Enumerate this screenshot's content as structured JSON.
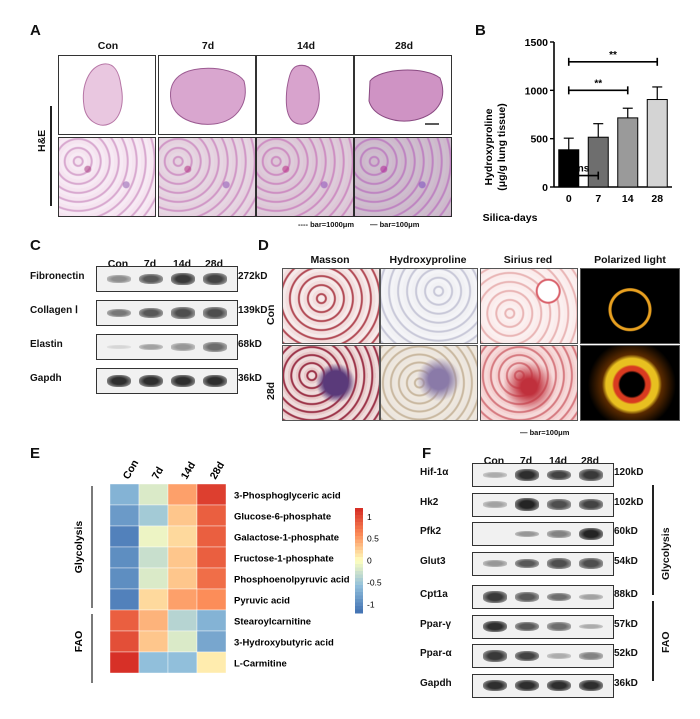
{
  "panel_a": {
    "label": "A",
    "columns": [
      "Con",
      "7d",
      "14d",
      "28d"
    ],
    "row_label": "H&E",
    "scale_text_1": "---- bar=1000μm",
    "scale_text_2": "— bar=100μm"
  },
  "panel_b": {
    "label": "B"
  },
  "chart_data": {
    "type": "bar",
    "categories": [
      "0",
      "7",
      "14",
      "28"
    ],
    "values": [
      385,
      515,
      715,
      905
    ],
    "errors": [
      120,
      140,
      100,
      130
    ],
    "colors": [
      "#000000",
      "#6e6e6e",
      "#9a9a9a",
      "#d4d4d4"
    ],
    "xlabel": "Silica-days",
    "ylabel": "Hydroxyproline\n(μg/g lung tissue)",
    "ylim": [
      0,
      1500
    ],
    "yticks": [
      0,
      500,
      1000,
      1500
    ],
    "annotations": [
      {
        "from": "0",
        "to": "7",
        "text": "ns"
      },
      {
        "from": "0",
        "to": "14",
        "text": "**"
      },
      {
        "from": "0",
        "to": "28",
        "text": "**"
      }
    ]
  },
  "panel_c": {
    "label": "C",
    "columns": [
      "Con",
      "7d",
      "14d",
      "28d"
    ],
    "rows": [
      {
        "name": "Fibronectin",
        "kd": "272kD",
        "levels": [
          0.45,
          0.7,
          0.85,
          0.8
        ]
      },
      {
        "name": "Collagen Ⅰ",
        "kd": "139kD",
        "levels": [
          0.55,
          0.7,
          0.75,
          0.75
        ]
      },
      {
        "name": "Elastin",
        "kd": "68kD",
        "levels": [
          0.1,
          0.35,
          0.4,
          0.6
        ]
      },
      {
        "name": "Gapdh",
        "kd": "36kD",
        "levels": [
          0.9,
          0.9,
          0.9,
          0.9
        ]
      }
    ]
  },
  "panel_d": {
    "label": "D",
    "columns": [
      "Masson",
      "Hydroxyproline",
      "Sirius red",
      "Polarized light"
    ],
    "rows": [
      "Con",
      "28d"
    ],
    "scale_text": "— bar=100μm"
  },
  "panel_e": {
    "label": "E",
    "columns": [
      "Con",
      "7d",
      "14d",
      "28d"
    ],
    "groups": [
      "Glycolysis",
      "FAO"
    ],
    "rows": [
      "3-Phosphoglyceric acid",
      "Glucose-6-phosphate",
      "Galactose-1-phosphate",
      "Fructose-1-phosphate",
      "Phosphoenolpyruvic acid",
      "Pyruvic acid",
      "Stearoylcarnitine",
      "3-Hydroxybutyric acid",
      "L-Carmitine"
    ],
    "matrix": [
      [
        -0.7,
        -0.2,
        0.5,
        1.1
      ],
      [
        -0.9,
        -0.5,
        0.3,
        0.9
      ],
      [
        -1.1,
        -0.1,
        0.2,
        0.9
      ],
      [
        -1.0,
        -0.3,
        0.3,
        0.9
      ],
      [
        -1.0,
        -0.2,
        0.3,
        0.8
      ],
      [
        -1.1,
        0.2,
        0.5,
        0.6
      ],
      [
        0.9,
        0.4,
        -0.4,
        -0.7
      ],
      [
        1.0,
        0.3,
        -0.2,
        -0.8
      ],
      [
        1.2,
        -0.6,
        -0.6,
        0.1
      ]
    ],
    "legend_ticks": [
      "1",
      "0.5",
      "0",
      "-0.5",
      "-1"
    ]
  },
  "panel_f": {
    "label": "F",
    "columns": [
      "Con",
      "7d",
      "14d",
      "28d"
    ],
    "groups": [
      "Glycolysis",
      "FAO"
    ],
    "rows": [
      {
        "name": "Hif-1α",
        "kd": "120kD",
        "levels": [
          0.3,
          0.9,
          0.8,
          0.85
        ]
      },
      {
        "name": "Hk2",
        "kd": "102kD",
        "levels": [
          0.35,
          0.95,
          0.75,
          0.8
        ]
      },
      {
        "name": "Pfk2",
        "kd": "60kD",
        "levels": [
          0.0,
          0.4,
          0.5,
          0.95
        ]
      },
      {
        "name": "Glut3",
        "kd": "54kD",
        "levels": [
          0.4,
          0.7,
          0.75,
          0.75
        ]
      },
      {
        "name": "Cpt1a",
        "kd": "88kD",
        "levels": [
          0.85,
          0.7,
          0.6,
          0.35
        ]
      },
      {
        "name": "Ppar-γ",
        "kd": "57kD",
        "levels": [
          0.9,
          0.7,
          0.6,
          0.3
        ]
      },
      {
        "name": "Ppar-α",
        "kd": "52kD",
        "levels": [
          0.85,
          0.8,
          0.3,
          0.5
        ]
      },
      {
        "name": "Gapdh",
        "kd": "36kD",
        "levels": [
          0.9,
          0.9,
          0.9,
          0.9
        ]
      }
    ]
  }
}
